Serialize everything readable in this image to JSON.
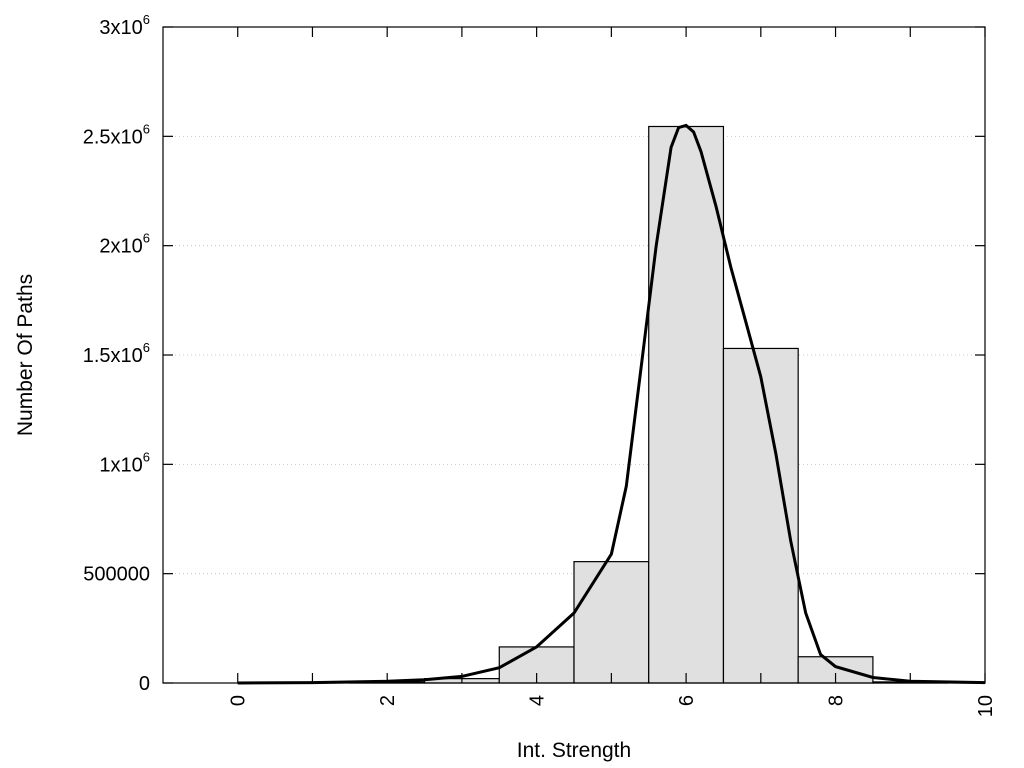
{
  "chart_data": {
    "type": "bar",
    "xlabel": "Int. Strength",
    "ylabel": "Number Of Paths",
    "xlim": [
      -1,
      10
    ],
    "ylim": [
      0,
      3000000
    ],
    "grid": "horizontal-dotted",
    "x_ticks": [
      {
        "value": 0,
        "label": "0"
      },
      {
        "value": 2,
        "label": "2"
      },
      {
        "value": 4,
        "label": "4"
      },
      {
        "value": 6,
        "label": "6"
      },
      {
        "value": 8,
        "label": "8"
      },
      {
        "value": 10,
        "label": "10"
      }
    ],
    "y_ticks": [
      {
        "value": 0,
        "base": "0",
        "exp": ""
      },
      {
        "value": 500000,
        "base": "500000",
        "exp": ""
      },
      {
        "value": 1000000,
        "base": "1x10",
        "exp": "6"
      },
      {
        "value": 1500000,
        "base": "1.5x10",
        "exp": "6"
      },
      {
        "value": 2000000,
        "base": "2x10",
        "exp": "6"
      },
      {
        "value": 2500000,
        "base": "2.5x10",
        "exp": "6"
      },
      {
        "value": 3000000,
        "base": "3x10",
        "exp": "6"
      }
    ],
    "bars": [
      {
        "x": 0,
        "value": 0
      },
      {
        "x": 1,
        "value": 0
      },
      {
        "x": 2,
        "value": 5000
      },
      {
        "x": 3,
        "value": 20000
      },
      {
        "x": 4,
        "value": 165000
      },
      {
        "x": 5,
        "value": 555000
      },
      {
        "x": 6,
        "value": 2545000
      },
      {
        "x": 7,
        "value": 1530000
      },
      {
        "x": 8,
        "value": 120000
      },
      {
        "x": 9,
        "value": 5000
      }
    ],
    "bar_width": 1,
    "fit_curve": {
      "x": [
        0,
        1,
        2,
        2.5,
        3,
        3.5,
        4,
        4.5,
        5,
        5.2,
        5.4,
        5.6,
        5.8,
        5.9,
        6,
        6.1,
        6.2,
        6.4,
        6.6,
        6.8,
        7,
        7.2,
        7.4,
        7.6,
        7.8,
        8,
        8.5,
        9,
        10
      ],
      "y": [
        0,
        2000,
        8000,
        15000,
        30000,
        70000,
        165000,
        320000,
        590000,
        900000,
        1450000,
        2000000,
        2450000,
        2540000,
        2550000,
        2520000,
        2430000,
        2180000,
        1900000,
        1650000,
        1400000,
        1050000,
        650000,
        320000,
        130000,
        75000,
        25000,
        8000,
        2000
      ]
    }
  }
}
